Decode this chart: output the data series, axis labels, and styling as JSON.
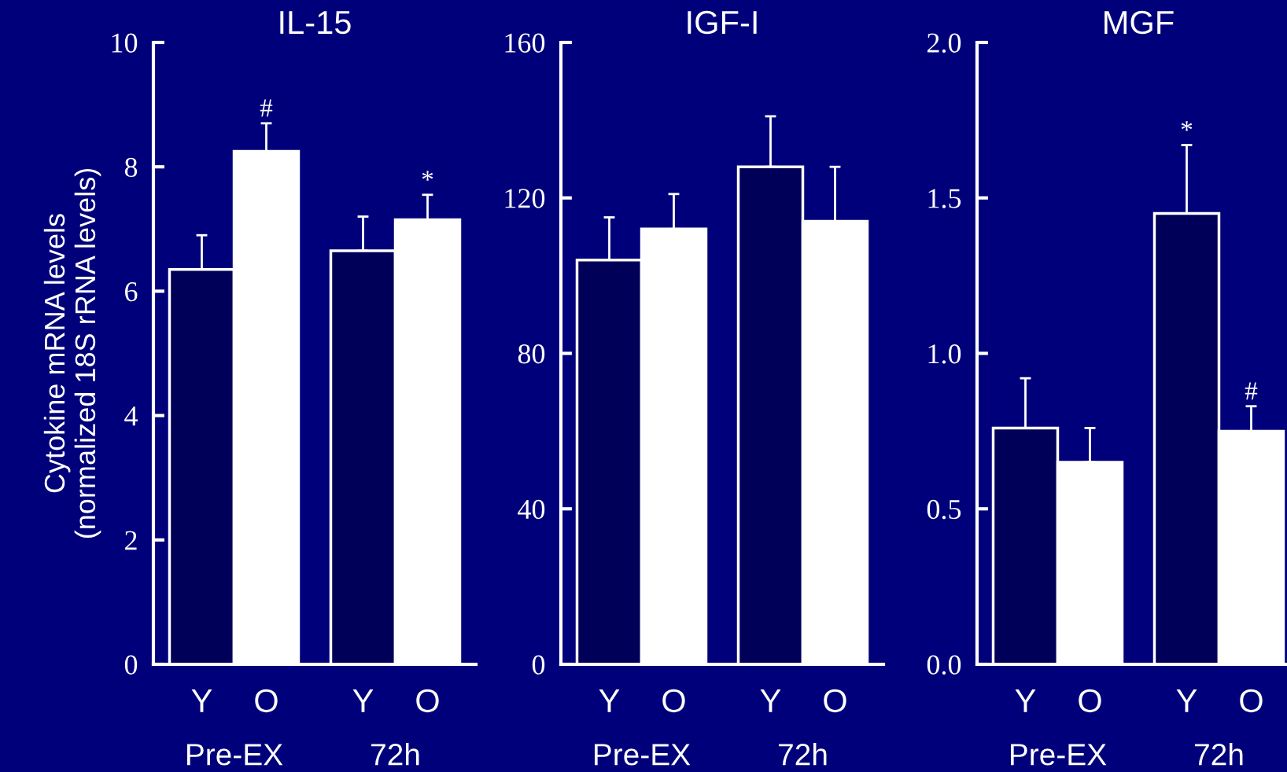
{
  "chart_data": [
    {
      "type": "bar",
      "title": "IL-15",
      "ylabel": "Cytokine mRNA levels\n(normalized 18S rRNA levels)",
      "categories": [
        "Pre-EX",
        "72h"
      ],
      "ylim": [
        0,
        10
      ],
      "yticks": [
        0,
        2,
        4,
        6,
        8,
        10
      ],
      "legend": false,
      "grid": false,
      "series": [
        {
          "name": "Y",
          "color": "#000058",
          "values": [
            6.35,
            6.65
          ],
          "errors": [
            [
              6.35,
              6.9
            ],
            [
              6.65,
              7.2
            ]
          ]
        },
        {
          "name": "O",
          "color": "#ffffff",
          "values": [
            8.25,
            7.15
          ],
          "errors": [
            [
              8.25,
              8.7
            ],
            [
              7.15,
              7.55
            ]
          ],
          "value_labels": [
            "#",
            "*"
          ]
        }
      ]
    },
    {
      "type": "bar",
      "title": "IGF-I",
      "categories": [
        "Pre-EX",
        "72h"
      ],
      "ylim": [
        0,
        160
      ],
      "yticks": [
        0,
        40,
        80,
        120,
        160
      ],
      "legend": false,
      "grid": false,
      "series": [
        {
          "name": "Y",
          "color": "#000058",
          "values": [
            104,
            128
          ],
          "errors": [
            [
              104,
              115
            ],
            [
              128,
              141
            ]
          ]
        },
        {
          "name": "O",
          "color": "#ffffff",
          "values": [
            112,
            114
          ],
          "errors": [
            [
              112,
              121
            ],
            [
              114,
              128
            ]
          ]
        }
      ]
    },
    {
      "type": "bar",
      "title": "MGF",
      "categories": [
        "Pre-EX",
        "72h"
      ],
      "ylim": [
        0,
        2.0
      ],
      "yticks": [
        {
          "value": 0,
          "label": "0.0"
        },
        0.5,
        {
          "value": 1,
          "label": "1.0"
        },
        1.5,
        {
          "value": 2,
          "label": "2.0"
        }
      ],
      "legend": false,
      "grid": false,
      "series": [
        {
          "name": "Y",
          "color": "#000058",
          "values": [
            0.76,
            1.45
          ],
          "errors": [
            [
              0.76,
              0.92
            ],
            [
              1.45,
              1.67
            ]
          ],
          "value_labels": [
            null,
            "*"
          ]
        },
        {
          "name": "O",
          "color": "#ffffff",
          "values": [
            0.65,
            0.75
          ],
          "errors": [
            [
              0.65,
              0.76
            ],
            [
              0.75,
              0.83
            ]
          ],
          "value_labels": [
            null,
            "#"
          ]
        }
      ]
    }
  ]
}
